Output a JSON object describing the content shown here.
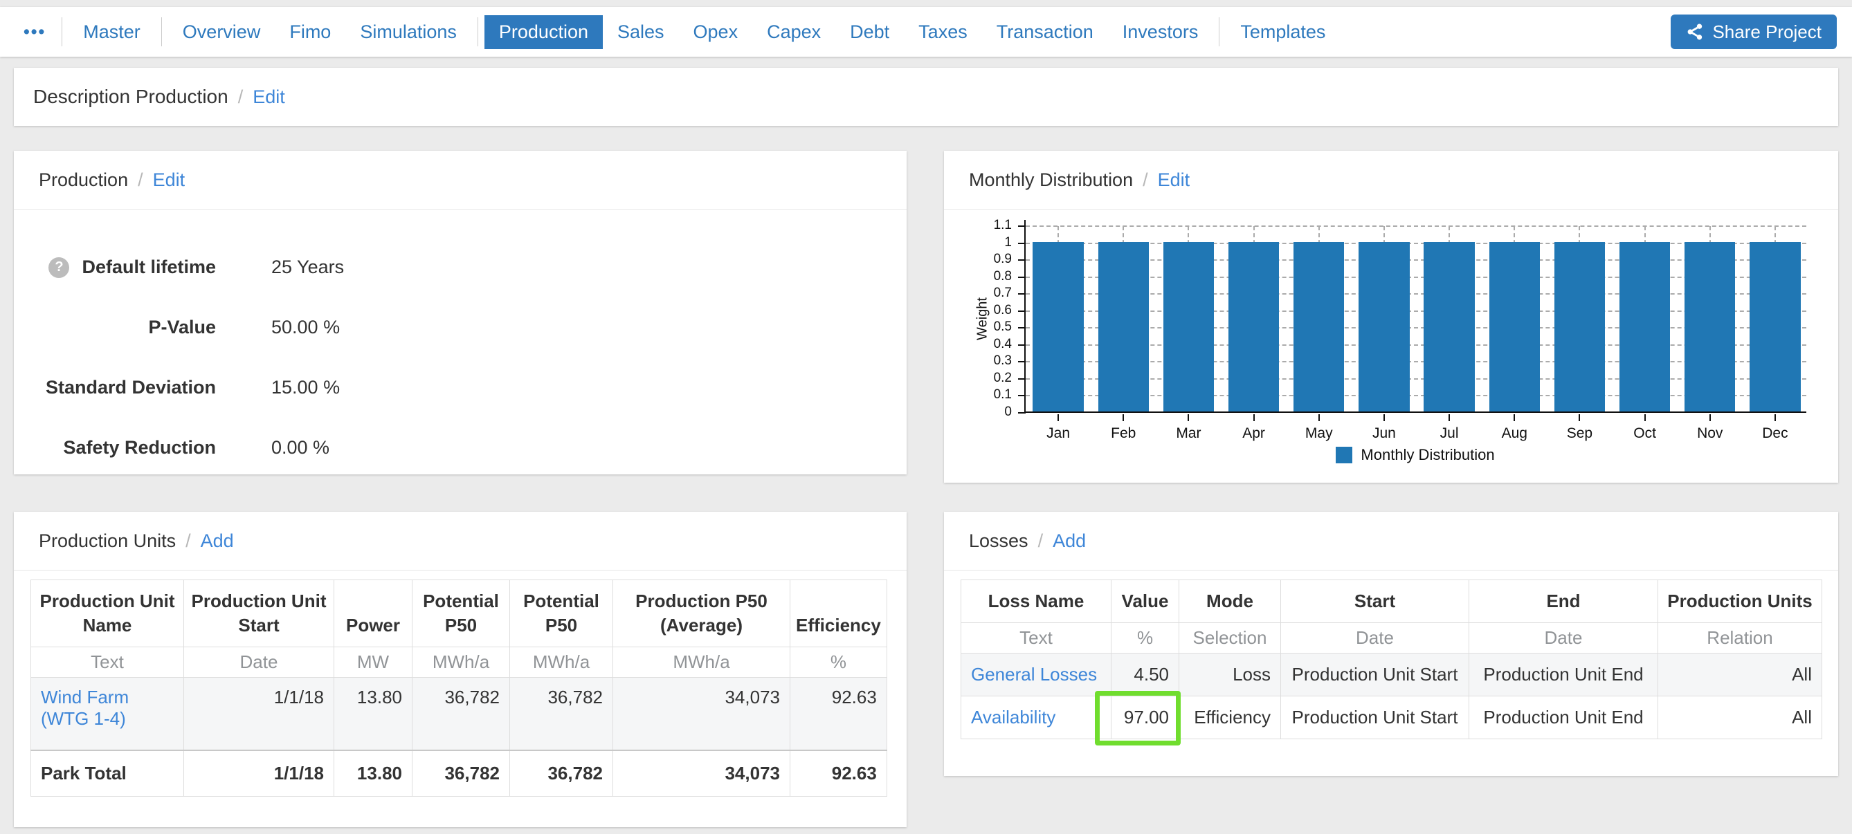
{
  "theme": {
    "accent": "#2e79bd",
    "link": "#3e86d8",
    "bar_blue": "#2077b4",
    "highlight_green": "#70dd2e"
  },
  "ui": {
    "slash": "/"
  },
  "nav": {
    "more_label": "•••",
    "tabs": [
      "Master",
      "Overview",
      "Fimo",
      "Simulations",
      "Production",
      "Sales",
      "Opex",
      "Capex",
      "Debt",
      "Taxes",
      "Transaction",
      "Investors",
      "Templates"
    ],
    "active_tab": "Production",
    "share_button": "Share Project"
  },
  "description_bar": {
    "title": "Description Production",
    "edit_label": "Edit"
  },
  "production_panel": {
    "title": "Production",
    "edit_label": "Edit",
    "help_glyph": "?",
    "fields": [
      {
        "label": "Default lifetime",
        "value": "25 Years",
        "has_help": true
      },
      {
        "label": "P-Value",
        "value": "50.00 %",
        "has_help": false
      },
      {
        "label": "Standard Deviation",
        "value": "15.00 %",
        "has_help": false
      },
      {
        "label": "Safety Reduction",
        "value": "0.00 %",
        "has_help": false
      }
    ]
  },
  "monthly_panel": {
    "title": "Monthly Distribution",
    "edit_label": "Edit"
  },
  "chart_data": {
    "type": "bar",
    "categories": [
      "Jan",
      "Feb",
      "Mar",
      "Apr",
      "May",
      "Jun",
      "Jul",
      "Aug",
      "Sep",
      "Oct",
      "Nov",
      "Dec"
    ],
    "values": [
      1,
      1,
      1,
      1,
      1,
      1,
      1,
      1,
      1,
      1,
      1,
      1
    ],
    "title": "",
    "xlabel": "",
    "ylabel": "Weight",
    "ylim": [
      0,
      1.1
    ],
    "yticks": [
      0,
      0.1,
      0.2,
      0.3,
      0.4,
      0.5,
      0.6,
      0.7,
      0.8,
      0.9,
      1,
      1.1
    ],
    "grid": "dashed",
    "legend": [
      "Monthly Distribution"
    ],
    "legend_position": "bottom",
    "bar_color": "#2077b4"
  },
  "production_units_panel": {
    "title": "Production Units",
    "add_label": "Add",
    "table": {
      "headers": [
        "Production Unit Name",
        "Production Unit Start",
        "Power",
        "Potential P50",
        "Potential P50",
        "Production P50 (Average)",
        "Efficiency"
      ],
      "types": [
        "Text",
        "Date",
        "MW",
        "MWh/a",
        "MWh/a",
        "MWh/a",
        "%"
      ],
      "rows": [
        {
          "name": "Wind Farm (WTG 1-4)",
          "values": [
            "1/1/18",
            "13.80",
            "36,782",
            "36,782",
            "34,073",
            "92.63"
          ]
        }
      ],
      "total_row": {
        "name": "Park Total",
        "values": [
          "1/1/18",
          "13.80",
          "36,782",
          "36,782",
          "34,073",
          "92.63"
        ]
      }
    }
  },
  "losses_panel": {
    "title": "Losses",
    "add_label": "Add",
    "table": {
      "headers": [
        "Loss Name",
        "Value",
        "Mode",
        "Start",
        "End",
        "Production Units"
      ],
      "types": [
        "Text",
        "%",
        "Selection",
        "Date",
        "Date",
        "Relation"
      ],
      "rows": [
        {
          "name": "General Losses",
          "value": "4.50",
          "mode": "Loss",
          "start": "Production Unit Start",
          "end": "Production Unit End",
          "units": "All",
          "highlighted": false
        },
        {
          "name": "Availability",
          "value": "97.00",
          "mode": "Efficiency",
          "start": "Production Unit Start",
          "end": "Production Unit End",
          "units": "All",
          "highlighted": true
        }
      ]
    }
  }
}
